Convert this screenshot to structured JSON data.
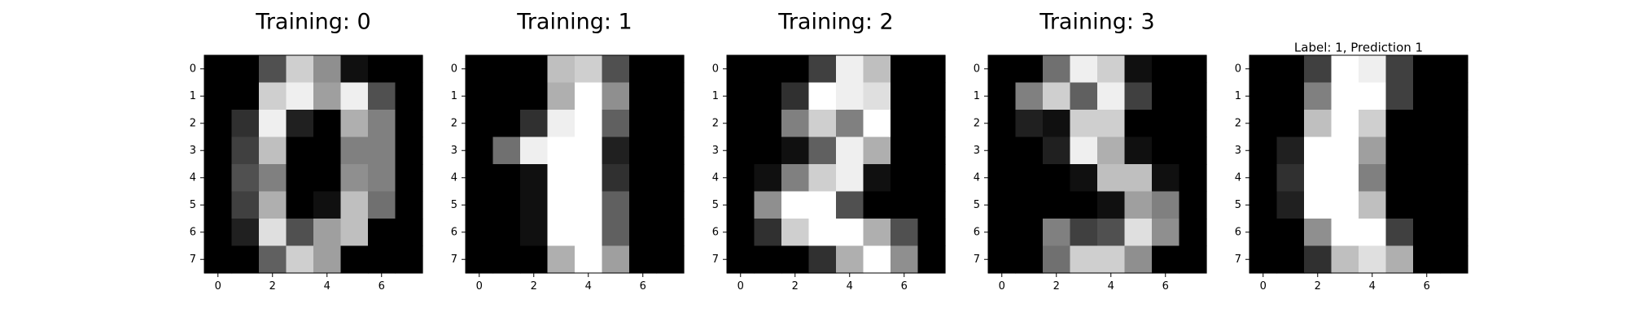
{
  "chart_data": [
    {
      "type": "heatmap",
      "colormap": "gray_r",
      "title": "Training: 0",
      "xticks": [
        0,
        2,
        4,
        6
      ],
      "yticks": [
        0,
        1,
        2,
        3,
        4,
        5,
        6,
        7
      ],
      "xlim": [
        -0.5,
        7.5
      ],
      "ylim": [
        7.5,
        -0.5
      ],
      "values": [
        [
          0,
          0,
          5,
          13,
          9,
          1,
          0,
          0
        ],
        [
          0,
          0,
          13,
          15,
          10,
          15,
          5,
          0
        ],
        [
          0,
          3,
          15,
          2,
          0,
          11,
          8,
          0
        ],
        [
          0,
          4,
          12,
          0,
          0,
          8,
          8,
          0
        ],
        [
          0,
          5,
          8,
          0,
          0,
          9,
          8,
          0
        ],
        [
          0,
          4,
          11,
          0,
          1,
          12,
          7,
          0
        ],
        [
          0,
          2,
          14,
          5,
          10,
          12,
          0,
          0
        ],
        [
          0,
          0,
          6,
          13,
          10,
          0,
          0,
          0
        ]
      ]
    },
    {
      "type": "heatmap",
      "colormap": "gray_r",
      "title": "Training: 1",
      "xticks": [
        0,
        2,
        4,
        6
      ],
      "yticks": [
        0,
        1,
        2,
        3,
        4,
        5,
        6,
        7
      ],
      "xlim": [
        -0.5,
        7.5
      ],
      "ylim": [
        7.5,
        -0.5
      ],
      "values": [
        [
          0,
          0,
          0,
          12,
          13,
          5,
          0,
          0
        ],
        [
          0,
          0,
          0,
          11,
          16,
          9,
          0,
          0
        ],
        [
          0,
          0,
          3,
          15,
          16,
          6,
          0,
          0
        ],
        [
          0,
          7,
          15,
          16,
          16,
          2,
          0,
          0
        ],
        [
          0,
          0,
          1,
          16,
          16,
          3,
          0,
          0
        ],
        [
          0,
          0,
          1,
          16,
          16,
          6,
          0,
          0
        ],
        [
          0,
          0,
          1,
          16,
          16,
          6,
          0,
          0
        ],
        [
          0,
          0,
          0,
          11,
          16,
          10,
          0,
          0
        ]
      ]
    },
    {
      "type": "heatmap",
      "colormap": "gray_r",
      "title": "Training: 2",
      "xticks": [
        0,
        2,
        4,
        6
      ],
      "yticks": [
        0,
        1,
        2,
        3,
        4,
        5,
        6,
        7
      ],
      "xlim": [
        -0.5,
        7.5
      ],
      "ylim": [
        7.5,
        -0.5
      ],
      "values": [
        [
          0,
          0,
          0,
          4,
          15,
          12,
          0,
          0
        ],
        [
          0,
          0,
          3,
          16,
          15,
          14,
          0,
          0
        ],
        [
          0,
          0,
          8,
          13,
          8,
          16,
          0,
          0
        ],
        [
          0,
          0,
          1,
          6,
          15,
          11,
          0,
          0
        ],
        [
          0,
          1,
          8,
          13,
          15,
          1,
          0,
          0
        ],
        [
          0,
          9,
          16,
          16,
          5,
          0,
          0,
          0
        ],
        [
          0,
          3,
          13,
          16,
          16,
          11,
          5,
          0
        ],
        [
          0,
          0,
          0,
          3,
          11,
          16,
          9,
          0
        ]
      ]
    },
    {
      "type": "heatmap",
      "colormap": "gray_r",
      "title": "Training: 3",
      "xticks": [
        0,
        2,
        4,
        6
      ],
      "yticks": [
        0,
        1,
        2,
        3,
        4,
        5,
        6,
        7
      ],
      "xlim": [
        -0.5,
        7.5
      ],
      "ylim": [
        7.5,
        -0.5
      ],
      "values": [
        [
          0,
          0,
          7,
          15,
          13,
          1,
          0,
          0
        ],
        [
          0,
          8,
          13,
          6,
          15,
          4,
          0,
          0
        ],
        [
          0,
          2,
          1,
          13,
          13,
          0,
          0,
          0
        ],
        [
          0,
          0,
          2,
          15,
          11,
          1,
          0,
          0
        ],
        [
          0,
          0,
          0,
          1,
          12,
          12,
          1,
          0
        ],
        [
          0,
          0,
          0,
          0,
          1,
          10,
          8,
          0
        ],
        [
          0,
          0,
          8,
          4,
          5,
          14,
          9,
          0
        ],
        [
          0,
          0,
          7,
          13,
          13,
          9,
          0,
          0
        ]
      ]
    },
    {
      "type": "heatmap",
      "colormap": "gray_r",
      "title": "Label: 1, Prediction 1",
      "xticks": [
        0,
        2,
        4,
        6
      ],
      "yticks": [
        0,
        1,
        2,
        3,
        4,
        5,
        6,
        7
      ],
      "xlim": [
        -0.5,
        7.5
      ],
      "ylim": [
        7.5,
        -0.5
      ],
      "values": [
        [
          0,
          0,
          4,
          16,
          15,
          4,
          0,
          0
        ],
        [
          0,
          0,
          8,
          16,
          16,
          4,
          0,
          0
        ],
        [
          0,
          0,
          12,
          16,
          13,
          0,
          0,
          0
        ],
        [
          0,
          2,
          16,
          16,
          10,
          0,
          0,
          0
        ],
        [
          0,
          3,
          16,
          16,
          8,
          0,
          0,
          0
        ],
        [
          0,
          2,
          16,
          16,
          12,
          0,
          0,
          0
        ],
        [
          0,
          0,
          9,
          16,
          16,
          4,
          0,
          0
        ],
        [
          0,
          0,
          3,
          12,
          14,
          11,
          0,
          0
        ]
      ]
    }
  ]
}
